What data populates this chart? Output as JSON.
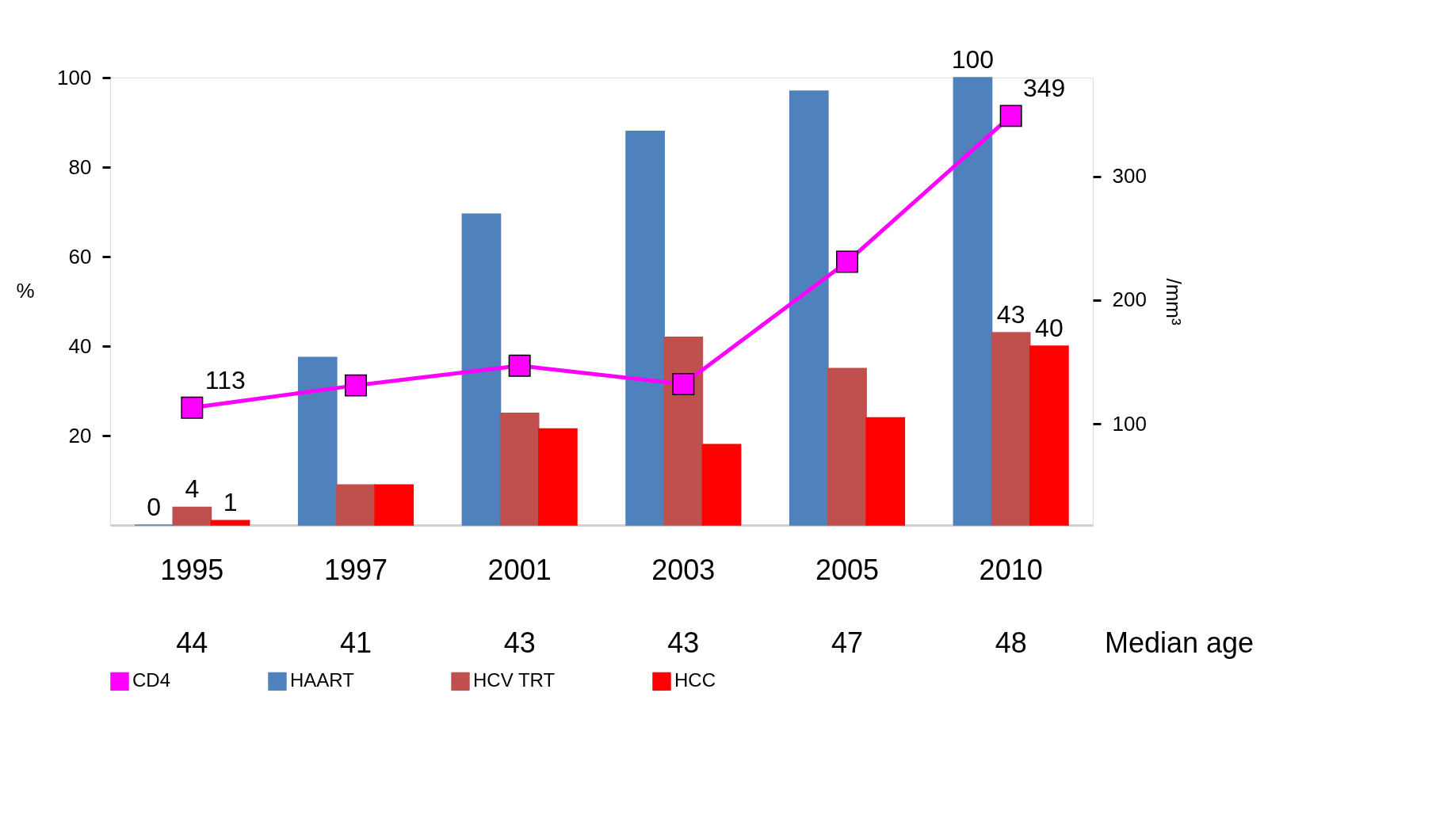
{
  "chart_data": {
    "type": "bar",
    "ylabel": "%",
    "y2label": "/mm³",
    "categories": [
      "1995",
      "1997",
      "2001",
      "2003",
      "2005",
      "2010"
    ],
    "series": [
      {
        "name": "CD4",
        "type": "line",
        "axis": "y2",
        "color": "#ff00ff",
        "values": [
          113,
          131,
          147,
          132,
          231,
          349
        ],
        "value_labels": [
          "113",
          null,
          null,
          null,
          null,
          "349"
        ]
      },
      {
        "name": "HAART",
        "color": "#4f81bd",
        "values": [
          0,
          37.5,
          69.5,
          88,
          97,
          100
        ],
        "value_labels": [
          "0",
          null,
          null,
          null,
          null,
          "100"
        ]
      },
      {
        "name": "HCV TRT",
        "color": "#c0504d",
        "values": [
          4,
          9,
          25,
          42,
          35,
          43
        ],
        "value_labels": [
          "4",
          null,
          null,
          null,
          null,
          "43"
        ]
      },
      {
        "name": "HCC",
        "color": "#ff0000",
        "values": [
          1,
          9,
          21.5,
          18,
          24,
          40
        ],
        "value_labels": [
          "1",
          null,
          null,
          null,
          null,
          "40"
        ]
      }
    ],
    "ylim": [
      0,
      100
    ],
    "yticks": [
      20,
      40,
      60,
      80,
      100
    ],
    "y2lim": [
      18,
      380
    ],
    "y2ticks": [
      100,
      200,
      300
    ],
    "marker": "square",
    "legend": "bottom",
    "grid": false,
    "annotations": [
      "44",
      "41",
      "43",
      "43",
      "47",
      "48",
      "Median age"
    ]
  }
}
